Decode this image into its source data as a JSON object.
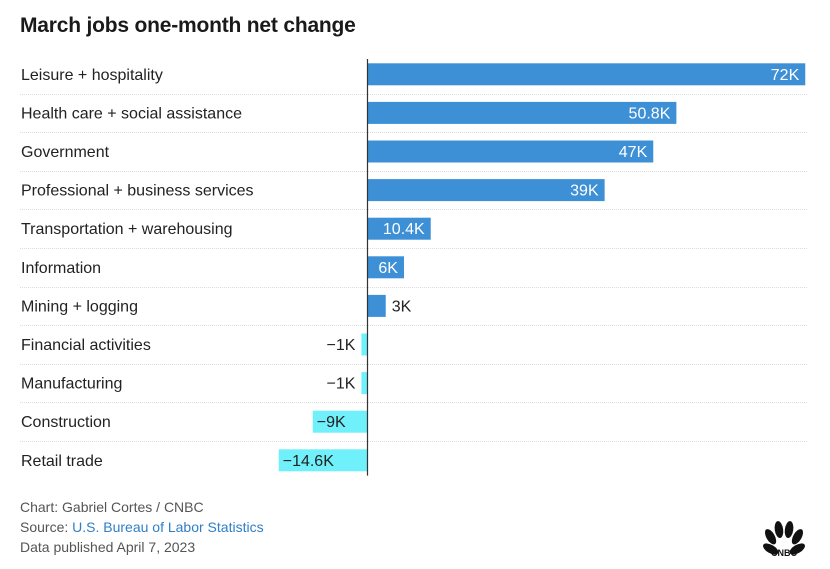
{
  "chart_data": {
    "type": "bar",
    "orientation": "horizontal",
    "title": "March jobs one-month net change",
    "categories": [
      "Leisure + hospitality",
      "Health care + social assistance",
      "Government",
      "Professional + business services",
      "Transportation + warehousing",
      "Information",
      "Mining + logging",
      "Financial activities",
      "Manufacturing",
      "Construction",
      "Retail trade"
    ],
    "values": [
      72,
      50.8,
      47,
      39,
      10.4,
      6,
      3,
      -1,
      -1,
      -9,
      -14.6
    ],
    "labels": [
      "72K",
      "50.8K",
      "47K",
      "39K",
      "10.4K",
      "6K",
      "3K",
      "−1K",
      "−1K",
      "−9K",
      "−14.6K"
    ],
    "xlim": [
      -14.6,
      72
    ],
    "colors": {
      "positive": "#3d8fd6",
      "negative": "#6ff0fb"
    },
    "grid": true
  },
  "footer": {
    "credit": "Chart: Gabriel Cortes / CNBC",
    "source_prefix": "Source: ",
    "source_link": "U.S. Bureau of Labor Statistics",
    "published": "Data published April 7, 2023"
  },
  "logo": {
    "icon": "cnbc-peacock-logo",
    "text": "CNBC"
  }
}
